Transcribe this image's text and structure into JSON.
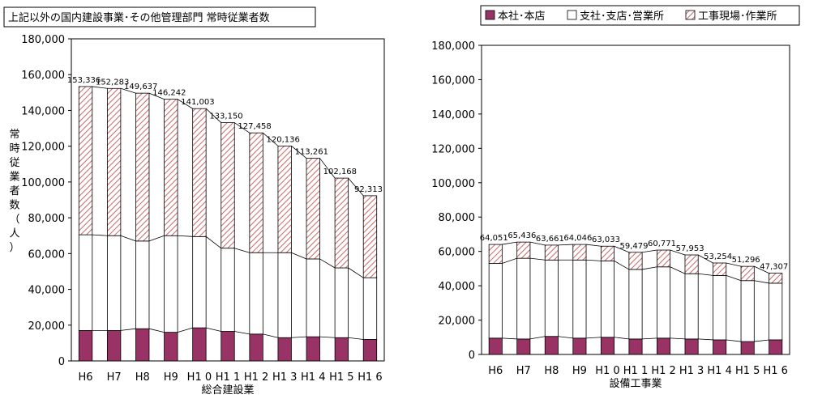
{
  "figure_title": "上記以外の国内建設事業･その他管理部門 常時従業者数",
  "ylabel": "常時従業者数（人）",
  "legend": [
    {
      "label": "本社･本店",
      "pattern": "solid"
    },
    {
      "label": "支社･支店･営業所",
      "pattern": "white"
    },
    {
      "label": "工事現場･作業所",
      "pattern": "hatch"
    }
  ],
  "colors": {
    "honsha": "#993366",
    "shisha": "#ffffff",
    "genba_hatch": "#cc6666",
    "axis": "#000000"
  },
  "chart_data": [
    {
      "type": "bar",
      "stacked": true,
      "title": "",
      "xlabel": "総合建設業",
      "ylabel": "常時従業者数（人）",
      "ylim": [
        0,
        180000
      ],
      "yticks": [
        0,
        20000,
        40000,
        60000,
        80000,
        100000,
        120000,
        140000,
        160000,
        180000
      ],
      "ytick_labels": [
        "0",
        "20,000",
        "40,000",
        "60,000",
        "80,000",
        "100,000",
        "120,000",
        "140,000",
        "160,000",
        "180,000"
      ],
      "grid": false,
      "categories": [
        "H6",
        "H7",
        "H8",
        "H9",
        "H10",
        "H11",
        "H12",
        "H13",
        "H14",
        "H15",
        "H16"
      ],
      "category_labels": [
        "H6",
        "H7",
        "H8",
        "H9",
        "H1 0",
        "H1 1",
        "H1 2",
        "H1 3",
        "H1 4",
        "H1 5",
        "H1 6"
      ],
      "series": [
        {
          "name": "本社･本店",
          "values": [
            17000,
            17000,
            18000,
            16000,
            18500,
            16500,
            15000,
            13000,
            13500,
            13000,
            12000
          ]
        },
        {
          "name": "支社･支店･営業所",
          "values": [
            53500,
            53000,
            49000,
            54000,
            51000,
            46500,
            45500,
            47500,
            43500,
            39000,
            34500
          ]
        },
        {
          "name": "工事現場･作業所",
          "values": [
            82836,
            82283,
            82637,
            76242,
            71503,
            70150,
            66958,
            59636,
            56261,
            50168,
            45813
          ]
        }
      ],
      "totals": [
        153336,
        152283,
        149637,
        146242,
        141003,
        133150,
        127458,
        120136,
        113261,
        102168,
        92313
      ],
      "total_labels": [
        "153,336",
        "152,283",
        "149,637",
        "146,242",
        "141,003",
        "133,150",
        "127,458",
        "120,136",
        "113,261",
        "102,168",
        "92,313"
      ]
    },
    {
      "type": "bar",
      "stacked": true,
      "title": "",
      "xlabel": "設備工事業",
      "ylim": [
        0,
        180000
      ],
      "yticks": [
        0,
        20000,
        40000,
        60000,
        80000,
        100000,
        120000,
        140000,
        160000,
        180000
      ],
      "ytick_labels": [
        "0",
        "20,000",
        "40,000",
        "60,000",
        "80,000",
        "100,000",
        "120,000",
        "140,000",
        "160,000",
        "180,000"
      ],
      "grid": false,
      "categories": [
        "H6",
        "H7",
        "H8",
        "H9",
        "H10",
        "H11",
        "H12",
        "H13",
        "H14",
        "H15",
        "H16"
      ],
      "category_labels": [
        "H6",
        "H7",
        "H8",
        "H9",
        "H1 0",
        "H1 1",
        "H1 2",
        "H1 3",
        "H1 4",
        "H1 5",
        "H1 6"
      ],
      "series": [
        {
          "name": "本社･本店",
          "values": [
            9500,
            9000,
            10500,
            9500,
            10000,
            9000,
            9500,
            9000,
            8500,
            7500,
            8500
          ]
        },
        {
          "name": "支社･支店･営業所",
          "values": [
            43500,
            47000,
            44500,
            45500,
            44500,
            40500,
            41500,
            38000,
            37500,
            35500,
            33000
          ]
        },
        {
          "name": "工事現場･作業所",
          "values": [
            11051,
            9436,
            8661,
            9046,
            8533,
            9979,
            9771,
            10953,
            7254,
            8296,
            5807
          ]
        }
      ],
      "totals": [
        64051,
        65436,
        63661,
        64046,
        63033,
        59479,
        60771,
        57953,
        53254,
        51296,
        47307
      ],
      "total_labels": [
        "64,051",
        "65,436",
        "63,661",
        "64,046",
        "63,033",
        "59,479",
        "60,771",
        "57,953",
        "53,254",
        "51,296",
        "47,307"
      ]
    }
  ]
}
